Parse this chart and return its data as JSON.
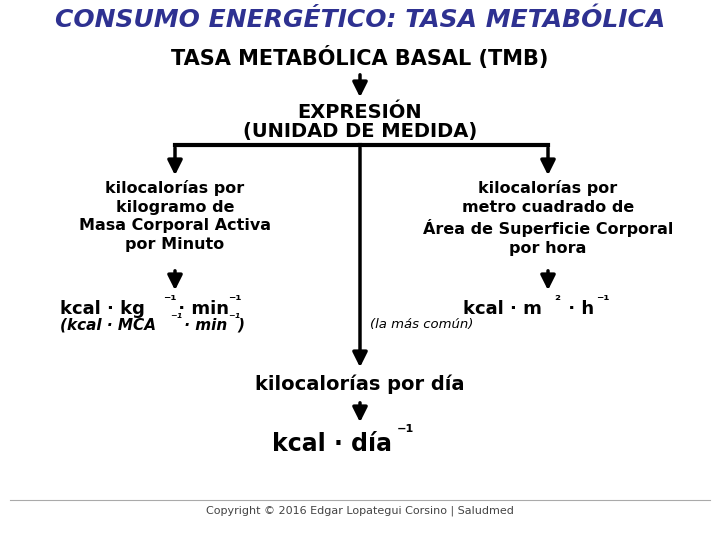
{
  "title": "CONSUMO ENERGÉTICO: TASA METABÓLICA",
  "title_color": "#2E3191",
  "bg_color": "#ffffff",
  "main_box_text": "TASA METABÓLICA BASAL (TMB)",
  "copyright": "Copyright © 2016 Edgar Lopategui Corsino | Saludmed",
  "arrow_color": "#000000"
}
